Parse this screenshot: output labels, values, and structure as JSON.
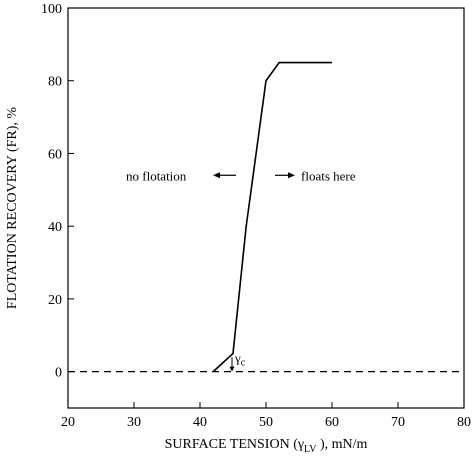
{
  "chart_data": {
    "type": "line",
    "title": "",
    "xlabel": "SURFACE TENSION (γ",
    "xlabel_subscript": "LV",
    "xlabel_suffix": " ), mN/m",
    "ylabel": "FLOTATION  RECOVERY (FR), %",
    "xlim": [
      20,
      80
    ],
    "ylim": [
      -10,
      100
    ],
    "x_ticks": [
      20,
      30,
      40,
      50,
      60,
      70,
      80
    ],
    "y_ticks": [
      0,
      20,
      40,
      60,
      80,
      100
    ],
    "grid": false,
    "series": [
      {
        "style": "solid",
        "x": [
          42,
          45,
          47,
          50,
          52,
          60
        ],
        "y": [
          0,
          5,
          40,
          80,
          85,
          85
        ]
      },
      {
        "style": "dashed",
        "x": [
          20,
          80
        ],
        "y": [
          0,
          0
        ]
      }
    ],
    "annotations": {
      "left_text": "no flotation",
      "right_text": "floats here",
      "gamma_symbol": "γ",
      "gamma_subscript": "c",
      "gamma_x": 45
    }
  }
}
